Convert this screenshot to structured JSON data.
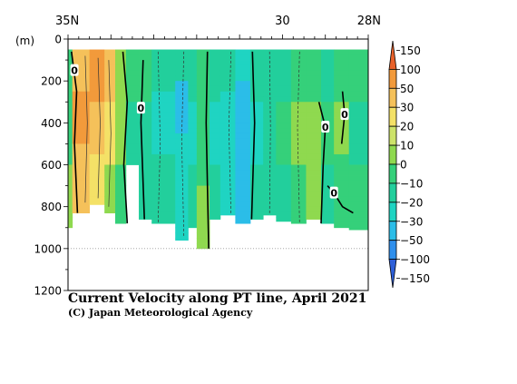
{
  "chart_data": {
    "type": "heatmap",
    "title": "Current Velocity along PT line, April 2021",
    "credit": "(C) Japan Meteorological Agency",
    "y_unit_label": "(m)",
    "x_tick_labels": [
      {
        "label": "35N",
        "lat": 35
      },
      {
        "label": "30",
        "lat": 30
      },
      {
        "label": "28N",
        "lat": 28
      }
    ],
    "xlim_lat": [
      35,
      28
    ],
    "ylim_depth_m": [
      0,
      1200
    ],
    "y_ticks": [
      0,
      200,
      400,
      600,
      800,
      1000,
      1200
    ],
    "reference_line_depth_m": 1000,
    "colorbar": {
      "tick_labels": [
        "150",
        "100",
        "50",
        "30",
        "20",
        "10",
        "0",
        "−10",
        "−20",
        "−30",
        "−50",
        "−100",
        "−150"
      ],
      "bins": [
        {
          "range": "100 to 150",
          "color": "#e8612a"
        },
        {
          "range": "50 to 100",
          "color": "#f29a3b"
        },
        {
          "range": "30 to 50",
          "color": "#f5c15a"
        },
        {
          "range": "20 to 30",
          "color": "#f4e167"
        },
        {
          "range": "10 to 20",
          "color": "#cde36a"
        },
        {
          "range": "0 to 10",
          "color": "#8fd94f"
        },
        {
          "range": "-10 to 0",
          "color": "#35d07a"
        },
        {
          "range": "-20 to -10",
          "color": "#22cf9c"
        },
        {
          "range": "-30 to -20",
          "color": "#1fd4c2"
        },
        {
          "range": "-50 to -30",
          "color": "#2bbde8"
        },
        {
          "range": "-100 to -50",
          "color": "#2f8fec"
        },
        {
          "range": "-150 to -100",
          "color": "#2e5fd8"
        }
      ]
    },
    "contour_labels": [
      {
        "text": "0",
        "lat": 34.85,
        "depth_m": 150
      },
      {
        "text": "0",
        "lat": 33.3,
        "depth_m": 330
      },
      {
        "text": "0",
        "lat": 29.0,
        "depth_m": 420
      },
      {
        "text": "0",
        "lat": 28.55,
        "depth_m": 360
      },
      {
        "text": "0",
        "lat": 28.8,
        "depth_m": 735
      }
    ],
    "sections": [
      {
        "lat0": 35.0,
        "lat1": 34.9,
        "max_depth_m": 900,
        "band": 0
      },
      {
        "lat0": 34.9,
        "lat1": 34.5,
        "max_depth_m": 830,
        "band": 1
      },
      {
        "lat0": 34.5,
        "lat1": 34.15,
        "max_depth_m": 790,
        "band": 2
      },
      {
        "lat0": 34.15,
        "lat1": 33.9,
        "max_depth_m": 830,
        "band": 3
      },
      {
        "lat0": 33.9,
        "lat1": 33.65,
        "max_depth_m": 880,
        "band": 4
      },
      {
        "lat0": 33.65,
        "lat1": 33.35,
        "max_depth_m": 600,
        "band": 5
      },
      {
        "lat0": 33.35,
        "lat1": 33.05,
        "max_depth_m": 860,
        "band": 6
      },
      {
        "lat0": 33.05,
        "lat1": 32.5,
        "max_depth_m": 880,
        "band": 7
      },
      {
        "lat0": 32.5,
        "lat1": 32.2,
        "max_depth_m": 960,
        "band": 8
      },
      {
        "lat0": 32.2,
        "lat1": 32.0,
        "max_depth_m": 900,
        "band": 9
      },
      {
        "lat0": 32.0,
        "lat1": 31.7,
        "max_depth_m": 1000,
        "band": 10
      },
      {
        "lat0": 31.7,
        "lat1": 31.45,
        "max_depth_m": 860,
        "band": 11
      },
      {
        "lat0": 31.45,
        "lat1": 31.1,
        "max_depth_m": 840,
        "band": 12
      },
      {
        "lat0": 31.1,
        "lat1": 30.75,
        "max_depth_m": 880,
        "band": 13
      },
      {
        "lat0": 30.75,
        "lat1": 30.45,
        "max_depth_m": 860,
        "band": 14
      },
      {
        "lat0": 30.45,
        "lat1": 30.15,
        "max_depth_m": 840,
        "band": 15
      },
      {
        "lat0": 30.15,
        "lat1": 29.8,
        "max_depth_m": 870,
        "band": 16
      },
      {
        "lat0": 29.8,
        "lat1": 29.45,
        "max_depth_m": 880,
        "band": 17
      },
      {
        "lat0": 29.45,
        "lat1": 29.1,
        "max_depth_m": 860,
        "band": 18
      },
      {
        "lat0": 29.1,
        "lat1": 28.8,
        "max_depth_m": 880,
        "band": 19
      },
      {
        "lat0": 28.8,
        "lat1": 28.45,
        "max_depth_m": 900,
        "band": 20
      },
      {
        "lat0": 28.45,
        "lat1": 28.0,
        "max_depth_m": 910,
        "band": 21
      }
    ],
    "band_profiles": [
      [
        [
          0,
          6
        ],
        [
          300,
          6
        ],
        [
          600,
          5
        ],
        [
          900,
          6
        ]
      ],
      [
        [
          0,
          2
        ],
        [
          250,
          1
        ],
        [
          500,
          2
        ],
        [
          830,
          5
        ]
      ],
      [
        [
          0,
          1
        ],
        [
          300,
          2
        ],
        [
          550,
          3
        ],
        [
          790,
          5
        ]
      ],
      [
        [
          0,
          2
        ],
        [
          300,
          3
        ],
        [
          600,
          5
        ],
        [
          830,
          6
        ]
      ],
      [
        [
          0,
          5
        ],
        [
          350,
          5
        ],
        [
          600,
          6
        ],
        [
          880,
          6
        ]
      ],
      [
        [
          0,
          6
        ],
        [
          300,
          7
        ],
        [
          600,
          6
        ]
      ],
      [
        [
          0,
          6
        ],
        [
          300,
          7
        ],
        [
          600,
          7
        ],
        [
          860,
          8
        ]
      ],
      [
        [
          0,
          7
        ],
        [
          250,
          8
        ],
        [
          550,
          7
        ],
        [
          880,
          7
        ]
      ],
      [
        [
          0,
          7
        ],
        [
          200,
          9
        ],
        [
          450,
          8
        ],
        [
          960,
          7
        ]
      ],
      [
        [
          0,
          7
        ],
        [
          300,
          8
        ],
        [
          600,
          7
        ],
        [
          900,
          7
        ]
      ],
      [
        [
          0,
          6
        ],
        [
          350,
          6
        ],
        [
          700,
          5
        ],
        [
          1000,
          6
        ]
      ],
      [
        [
          0,
          7
        ],
        [
          300,
          8
        ],
        [
          600,
          7
        ],
        [
          860,
          7
        ]
      ],
      [
        [
          0,
          7
        ],
        [
          250,
          8
        ],
        [
          500,
          8
        ],
        [
          840,
          7
        ]
      ],
      [
        [
          0,
          8
        ],
        [
          200,
          9
        ],
        [
          400,
          9
        ],
        [
          880,
          8
        ]
      ],
      [
        [
          0,
          7
        ],
        [
          300,
          8
        ],
        [
          600,
          7
        ],
        [
          860,
          7
        ]
      ],
      [
        [
          0,
          7
        ],
        [
          300,
          7
        ],
        [
          600,
          7
        ],
        [
          840,
          7
        ]
      ],
      [
        [
          0,
          7
        ],
        [
          300,
          6
        ],
        [
          600,
          7
        ],
        [
          870,
          7
        ]
      ],
      [
        [
          0,
          6
        ],
        [
          300,
          5
        ],
        [
          600,
          6
        ],
        [
          880,
          6
        ]
      ],
      [
        [
          0,
          6
        ],
        [
          300,
          5
        ],
        [
          600,
          5
        ],
        [
          860,
          6
        ]
      ],
      [
        [
          0,
          7
        ],
        [
          300,
          6
        ],
        [
          600,
          7
        ],
        [
          880,
          7
        ]
      ],
      [
        [
          0,
          6
        ],
        [
          300,
          5
        ],
        [
          550,
          6
        ],
        [
          900,
          5
        ]
      ],
      [
        [
          0,
          6
        ],
        [
          300,
          7
        ],
        [
          600,
          6
        ],
        [
          910,
          7
        ]
      ]
    ]
  }
}
